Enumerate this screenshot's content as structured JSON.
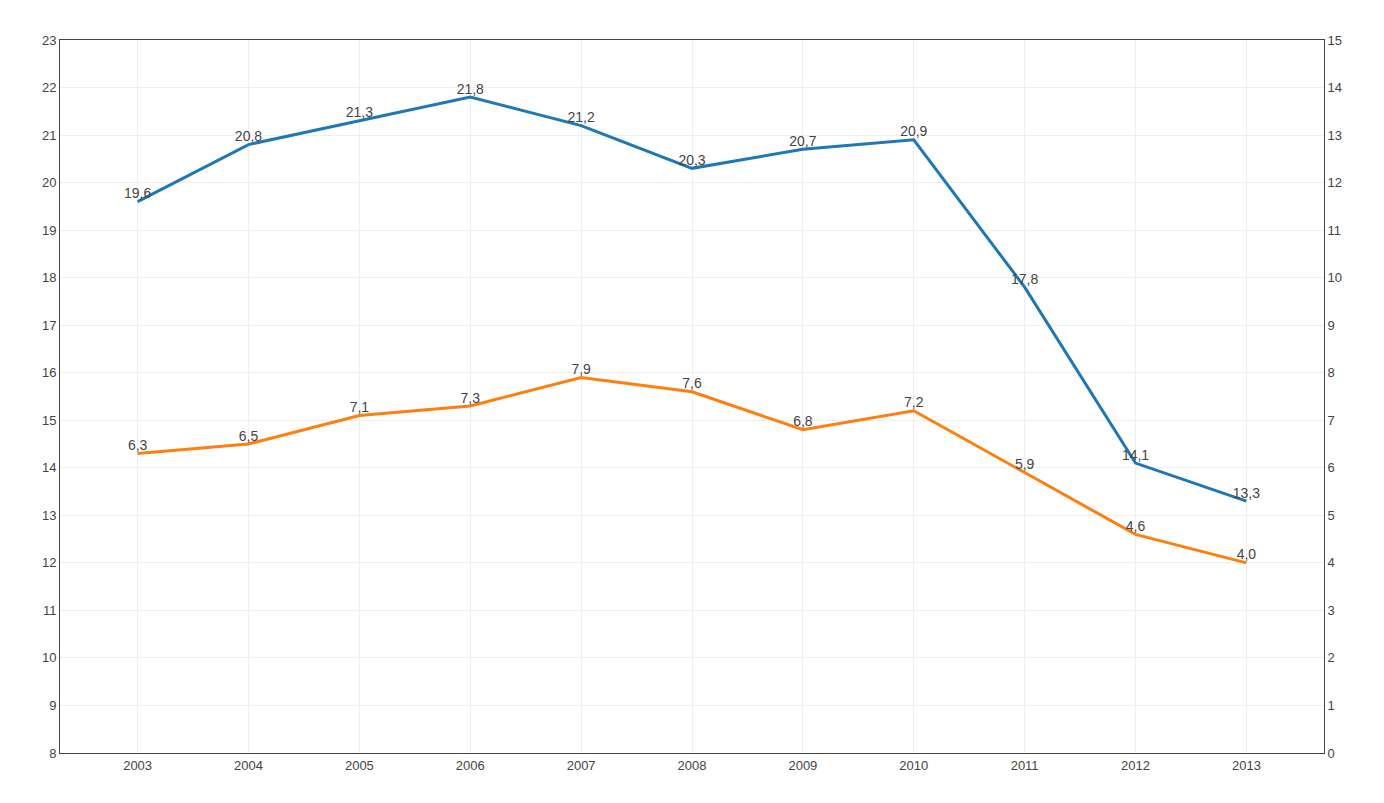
{
  "chart_data": {
    "type": "line",
    "x": [
      2003,
      2004,
      2005,
      2006,
      2007,
      2008,
      2009,
      2010,
      2011,
      2012,
      2013
    ],
    "xlim": [
      2002.3,
      2013.7
    ],
    "xticks": [
      2003,
      2004,
      2005,
      2006,
      2007,
      2008,
      2009,
      2010,
      2011,
      2012,
      2013
    ],
    "ylim": [
      8,
      23
    ],
    "yticks": [
      8,
      9,
      10,
      11,
      12,
      13,
      14,
      15,
      16,
      17,
      18,
      19,
      20,
      21,
      22,
      23
    ],
    "y2lim": [
      0,
      15
    ],
    "y2ticks": [
      0,
      1,
      2,
      3,
      4,
      5,
      6,
      7,
      8,
      9,
      10,
      11,
      12,
      13,
      14,
      15
    ],
    "grid": true,
    "data_labels": true,
    "series": [
      {
        "values": [
          19.6,
          20.8,
          21.3,
          21.8,
          21.2,
          20.3,
          20.7,
          20.9,
          17.8,
          14.1,
          13.3
        ],
        "value_labels": [
          "19,6",
          "20,8",
          "21,3",
          "21,8",
          "21,2",
          "20,3",
          "20,7",
          "20,9",
          "17,8",
          "14,1",
          "13,3"
        ]
      },
      {
        "values": [
          6.3,
          6.5,
          7.1,
          7.3,
          7.9,
          7.6,
          6.8,
          7.2,
          5.9,
          4.6,
          4.0
        ],
        "value_labels": [
          "6,3",
          "6,5",
          "7,1",
          "7,3",
          "7,9",
          "7,6",
          "6,8",
          "7,2",
          "5,9",
          "4,6",
          "4,0"
        ],
        "axis": "y2"
      }
    ]
  }
}
